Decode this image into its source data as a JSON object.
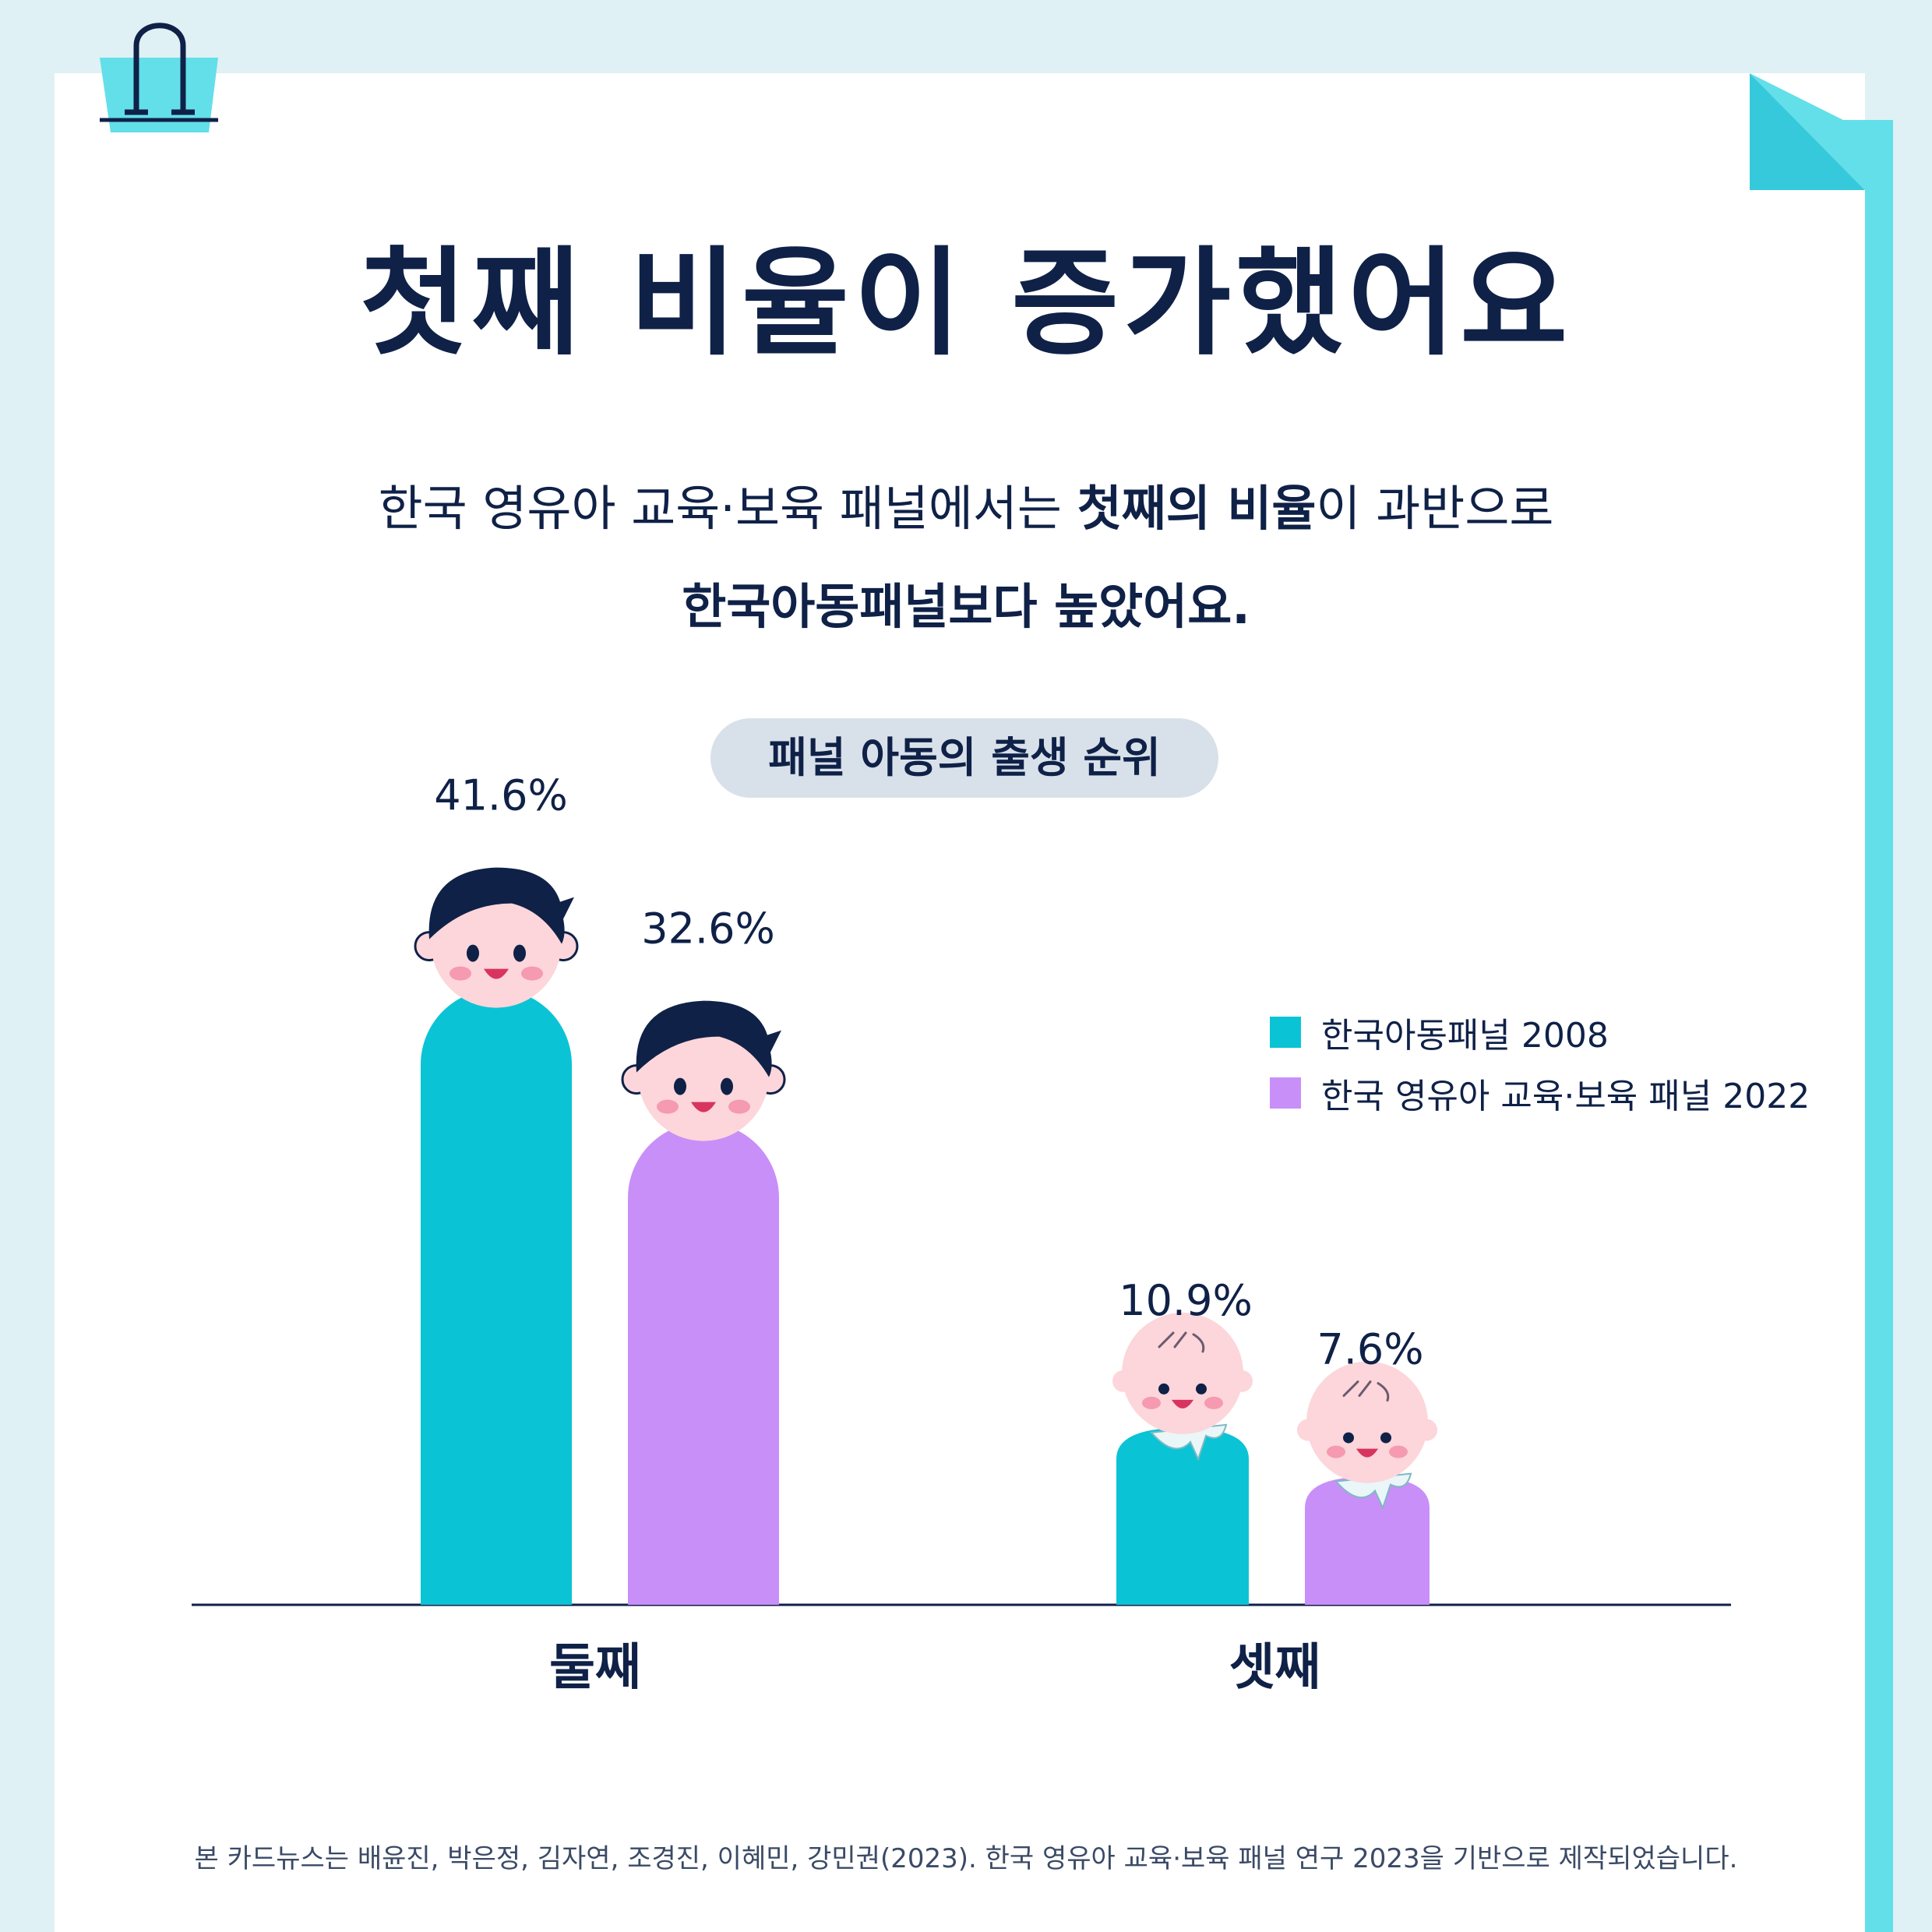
{
  "title": "첫째 비율이 증가했어요",
  "subtitle": {
    "line1_pre": "한국 영유아 교육·보육 패널에서는 ",
    "line1_bold": "첫째의 비율",
    "line1_post": "이 과반으로",
    "line2": "한국아동패널보다 높았어요."
  },
  "footnote": "본 카드뉴스는 배윤진, 박은정, 김자연, 조경진, 이혜민, 강민권(2023). 한국 영유아 교육·보육 패널 연구 2023을 기반으로 제작되었습니다.",
  "colors": {
    "background": "#dff1f4",
    "card": "#ffffff",
    "accent": "#63dfe9",
    "text": "#0f2147",
    "series_2008": "#0ac4d5",
    "series_2022": "#c98ff8",
    "skin": "#fcd6da",
    "cheek": "#f59ab0",
    "hair": "#0f2147"
  },
  "chart_data": {
    "type": "bar",
    "title": "패널 아동의 출생 순위",
    "categories": [
      "둘째",
      "셋째"
    ],
    "series": [
      {
        "name": "한국아동패널 2008",
        "values": [
          41.6,
          10.9
        ],
        "labels": [
          "41.6%",
          "10.9%"
        ]
      },
      {
        "name": "한국 영유아 교육·보육 패널 2022",
        "values": [
          32.6,
          7.6
        ],
        "labels": [
          "32.6%",
          "7.6%"
        ]
      }
    ],
    "unit": "%",
    "xlabel": "",
    "ylabel": "",
    "ylim": [
      0,
      50
    ],
    "grid": false,
    "legend_position": "right",
    "icons": [
      "child-icon",
      "baby-icon"
    ]
  }
}
